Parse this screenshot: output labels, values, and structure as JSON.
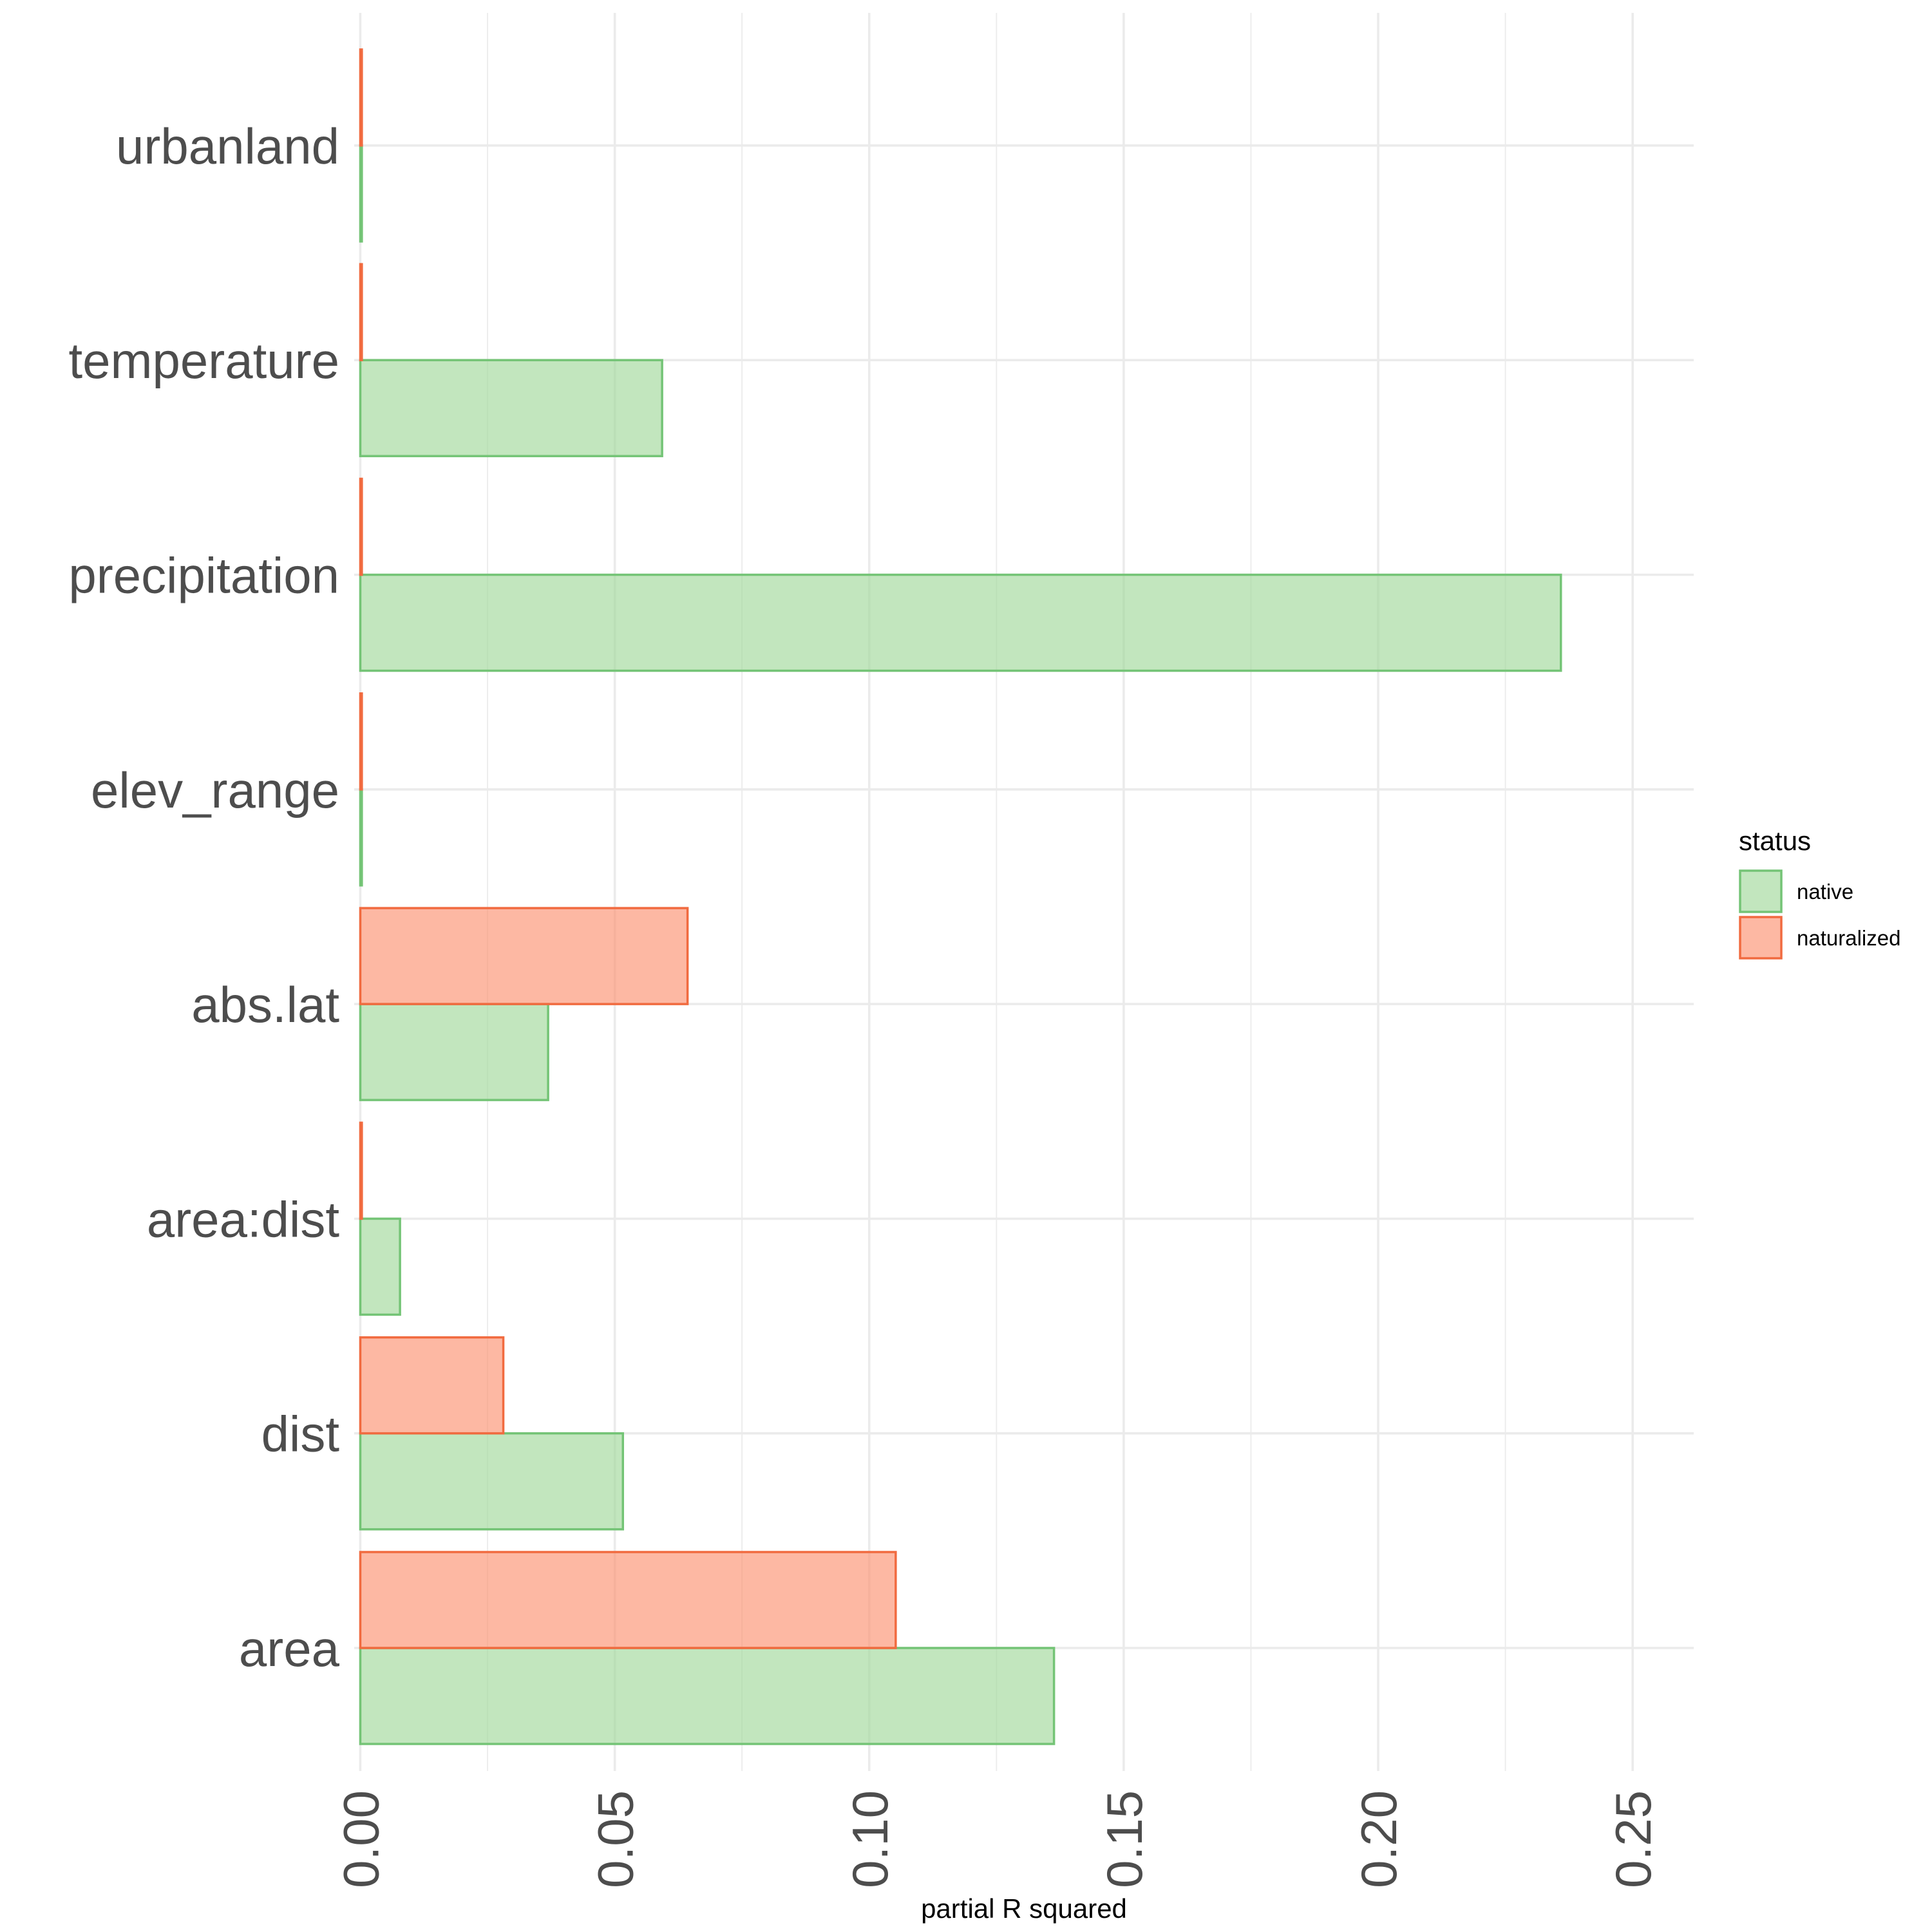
{
  "chart_data": {
    "type": "bar",
    "orientation": "horizontal",
    "categories": [
      "area",
      "dist",
      "area:dist",
      "abs.lat",
      "elev_range",
      "precipitation",
      "temperature",
      "urbanland"
    ],
    "series": [
      {
        "name": "native",
        "color": "#a1d99b",
        "stroke": "#74c476",
        "values": [
          0.1363,
          0.0516,
          0.0078,
          0.0369,
          0.0003,
          0.2359,
          0.0593,
          0.0003
        ]
      },
      {
        "name": "naturalized",
        "color": "#fc9272",
        "stroke": "#f16b40",
        "values": [
          0.1052,
          0.0281,
          0.0003,
          0.0643,
          0.0003,
          0.0003,
          0.0003,
          0.0003
        ]
      }
    ],
    "xlabel": "partial R squared",
    "ylabel": "",
    "xlim": [
      -0.0012,
      0.262
    ],
    "xticks": [
      "0.00",
      "0.05",
      "0.10",
      "0.15",
      "0.20",
      "0.25"
    ],
    "xtick_values": [
      0,
      0.05,
      0.1,
      0.15,
      0.2,
      0.25
    ],
    "legend": {
      "title": "status",
      "position": "right"
    },
    "grid": true
  }
}
